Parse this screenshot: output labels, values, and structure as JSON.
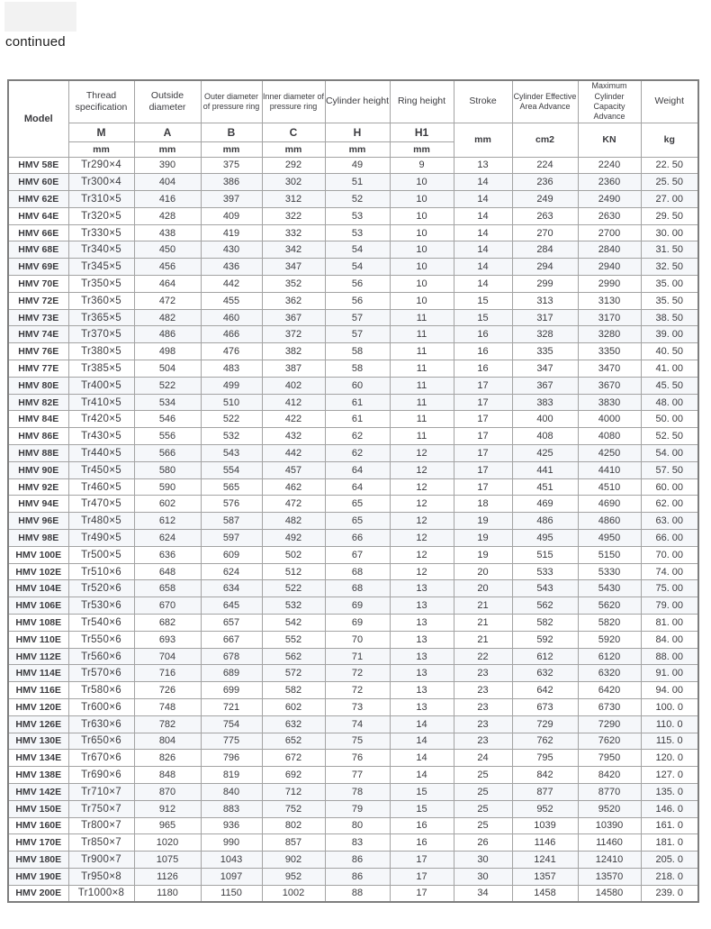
{
  "page": {
    "continued_label": "continued"
  },
  "table": {
    "header": {
      "model": "Model",
      "columns": [
        {
          "name": "Thread specification",
          "symbol": "M",
          "unit": "mm"
        },
        {
          "name": "Outside diameter",
          "symbol": "A",
          "unit": "mm"
        },
        {
          "name": "Outer diameter of pressure ring",
          "symbol": "B",
          "unit": "mm"
        },
        {
          "name": "Inner diameter of pressure ring",
          "symbol": "C",
          "unit": "mm"
        },
        {
          "name": "Cylinder height",
          "symbol": "H",
          "unit": "mm"
        },
        {
          "name": "Ring height",
          "symbol": "H1",
          "unit": "mm"
        }
      ],
      "merged_columns": [
        {
          "name": "Stroke",
          "unit": "mm"
        },
        {
          "name": "Cylinder Effective Area Advance",
          "unit": "cm2"
        },
        {
          "name": "Maximum Cylinder Capacity Advance",
          "unit": "KN"
        },
        {
          "name": "Weight",
          "unit": "kg"
        }
      ]
    },
    "rows": [
      [
        "HMV 58E",
        "Tr290×4",
        "390",
        "375",
        "292",
        "49",
        "9",
        "13",
        "224",
        "2240",
        "22. 50"
      ],
      [
        "HMV 60E",
        "Tr300×4",
        "404",
        "386",
        "302",
        "51",
        "10",
        "14",
        "236",
        "2360",
        "25. 50"
      ],
      [
        "HMV 62E",
        "Tr310×5",
        "416",
        "397",
        "312",
        "52",
        "10",
        "14",
        "249",
        "2490",
        "27. 00"
      ],
      [
        "HMV 64E",
        "Tr320×5",
        "428",
        "409",
        "322",
        "53",
        "10",
        "14",
        "263",
        "2630",
        "29. 50"
      ],
      [
        "HMV 66E",
        "Tr330×5",
        "438",
        "419",
        "332",
        "53",
        "10",
        "14",
        "270",
        "2700",
        "30. 00"
      ],
      [
        "HMV 68E",
        "Tr340×5",
        "450",
        "430",
        "342",
        "54",
        "10",
        "14",
        "284",
        "2840",
        "31. 50"
      ],
      [
        "HMV 69E",
        "Tr345×5",
        "456",
        "436",
        "347",
        "54",
        "10",
        "14",
        "294",
        "2940",
        "32. 50"
      ],
      [
        "HMV 70E",
        "Tr350×5",
        "464",
        "442",
        "352",
        "56",
        "10",
        "14",
        "299",
        "2990",
        "35. 00"
      ],
      [
        "HMV 72E",
        "Tr360×5",
        "472",
        "455",
        "362",
        "56",
        "10",
        "15",
        "313",
        "3130",
        "35. 50"
      ],
      [
        "HMV 73E",
        "Tr365×5",
        "482",
        "460",
        "367",
        "57",
        "11",
        "15",
        "317",
        "3170",
        "38. 50"
      ],
      [
        "HMV 74E",
        "Tr370×5",
        "486",
        "466",
        "372",
        "57",
        "11",
        "16",
        "328",
        "3280",
        "39. 00"
      ],
      [
        "HMV 76E",
        "Tr380×5",
        "498",
        "476",
        "382",
        "58",
        "11",
        "16",
        "335",
        "3350",
        "40. 50"
      ],
      [
        "HMV 77E",
        "Tr385×5",
        "504",
        "483",
        "387",
        "58",
        "11",
        "16",
        "347",
        "3470",
        "41. 00"
      ],
      [
        "HMV 80E",
        "Tr400×5",
        "522",
        "499",
        "402",
        "60",
        "11",
        "17",
        "367",
        "3670",
        "45. 50"
      ],
      [
        "HMV 82E",
        "Tr410×5",
        "534",
        "510",
        "412",
        "61",
        "11",
        "17",
        "383",
        "3830",
        "48. 00"
      ],
      [
        "HMV 84E",
        "Tr420×5",
        "546",
        "522",
        "422",
        "61",
        "11",
        "17",
        "400",
        "4000",
        "50. 00"
      ],
      [
        "HMV 86E",
        "Tr430×5",
        "556",
        "532",
        "432",
        "62",
        "11",
        "17",
        "408",
        "4080",
        "52. 50"
      ],
      [
        "HMV 88E",
        "Tr440×5",
        "566",
        "543",
        "442",
        "62",
        "12",
        "17",
        "425",
        "4250",
        "54. 00"
      ],
      [
        "HMV 90E",
        "Tr450×5",
        "580",
        "554",
        "457",
        "64",
        "12",
        "17",
        "441",
        "4410",
        "57. 50"
      ],
      [
        "HMV 92E",
        "Tr460×5",
        "590",
        "565",
        "462",
        "64",
        "12",
        "17",
        "451",
        "4510",
        "60. 00"
      ],
      [
        "HMV 94E",
        "Tr470×5",
        "602",
        "576",
        "472",
        "65",
        "12",
        "18",
        "469",
        "4690",
        "62. 00"
      ],
      [
        "HMV 96E",
        "Tr480×5",
        "612",
        "587",
        "482",
        "65",
        "12",
        "19",
        "486",
        "4860",
        "63. 00"
      ],
      [
        "HMV 98E",
        "Tr490×5",
        "624",
        "597",
        "492",
        "66",
        "12",
        "19",
        "495",
        "4950",
        "66. 00"
      ],
      [
        "HMV 100E",
        "Tr500×5",
        "636",
        "609",
        "502",
        "67",
        "12",
        "19",
        "515",
        "5150",
        "70. 00"
      ],
      [
        "HMV 102E",
        "Tr510×6",
        "648",
        "624",
        "512",
        "68",
        "12",
        "20",
        "533",
        "5330",
        "74. 00"
      ],
      [
        "HMV 104E",
        "Tr520×6",
        "658",
        "634",
        "522",
        "68",
        "13",
        "20",
        "543",
        "5430",
        "75. 00"
      ],
      [
        "HMV 106E",
        "Tr530×6",
        "670",
        "645",
        "532",
        "69",
        "13",
        "21",
        "562",
        "5620",
        "79. 00"
      ],
      [
        "HMV 108E",
        "Tr540×6",
        "682",
        "657",
        "542",
        "69",
        "13",
        "21",
        "582",
        "5820",
        "81. 00"
      ],
      [
        "HMV 110E",
        "Tr550×6",
        "693",
        "667",
        "552",
        "70",
        "13",
        "21",
        "592",
        "5920",
        "84. 00"
      ],
      [
        "HMV 112E",
        "Tr560×6",
        "704",
        "678",
        "562",
        "71",
        "13",
        "22",
        "612",
        "6120",
        "88. 00"
      ],
      [
        "HMV 114E",
        "Tr570×6",
        "716",
        "689",
        "572",
        "72",
        "13",
        "23",
        "632",
        "6320",
        "91. 00"
      ],
      [
        "HMV 116E",
        "Tr580×6",
        "726",
        "699",
        "582",
        "72",
        "13",
        "23",
        "642",
        "6420",
        "94. 00"
      ],
      [
        "HMV 120E",
        "Tr600×6",
        "748",
        "721",
        "602",
        "73",
        "13",
        "23",
        "673",
        "6730",
        "100. 0"
      ],
      [
        "HMV 126E",
        "Tr630×6",
        "782",
        "754",
        "632",
        "74",
        "14",
        "23",
        "729",
        "7290",
        "110. 0"
      ],
      [
        "HMV 130E",
        "Tr650×6",
        "804",
        "775",
        "652",
        "75",
        "14",
        "23",
        "762",
        "7620",
        "115. 0"
      ],
      [
        "HMV 134E",
        "Tr670×6",
        "826",
        "796",
        "672",
        "76",
        "14",
        "24",
        "795",
        "7950",
        "120. 0"
      ],
      [
        "HMV 138E",
        "Tr690×6",
        "848",
        "819",
        "692",
        "77",
        "14",
        "25",
        "842",
        "8420",
        "127. 0"
      ],
      [
        "HMV 142E",
        "Tr710×7",
        "870",
        "840",
        "712",
        "78",
        "15",
        "25",
        "877",
        "8770",
        "135. 0"
      ],
      [
        "HMV 150E",
        "Tr750×7",
        "912",
        "883",
        "752",
        "79",
        "15",
        "25",
        "952",
        "9520",
        "146. 0"
      ],
      [
        "HMV 160E",
        "Tr800×7",
        "965",
        "936",
        "802",
        "80",
        "16",
        "25",
        "1039",
        "10390",
        "161. 0"
      ],
      [
        "HMV 170E",
        "Tr850×7",
        "1020",
        "990",
        "857",
        "83",
        "16",
        "26",
        "1146",
        "11460",
        "181. 0"
      ],
      [
        "HMV 180E",
        "Tr900×7",
        "1075",
        "1043",
        "902",
        "86",
        "17",
        "30",
        "1241",
        "12410",
        "205. 0"
      ],
      [
        "HMV 190E",
        "Tr950×8",
        "1126",
        "1097",
        "952",
        "86",
        "17",
        "30",
        "1357",
        "13570",
        "218. 0"
      ],
      [
        "HMV 200E",
        "Tr1000×8",
        "1180",
        "1150",
        "1002",
        "88",
        "17",
        "34",
        "1458",
        "14580",
        "239. 0"
      ]
    ]
  }
}
